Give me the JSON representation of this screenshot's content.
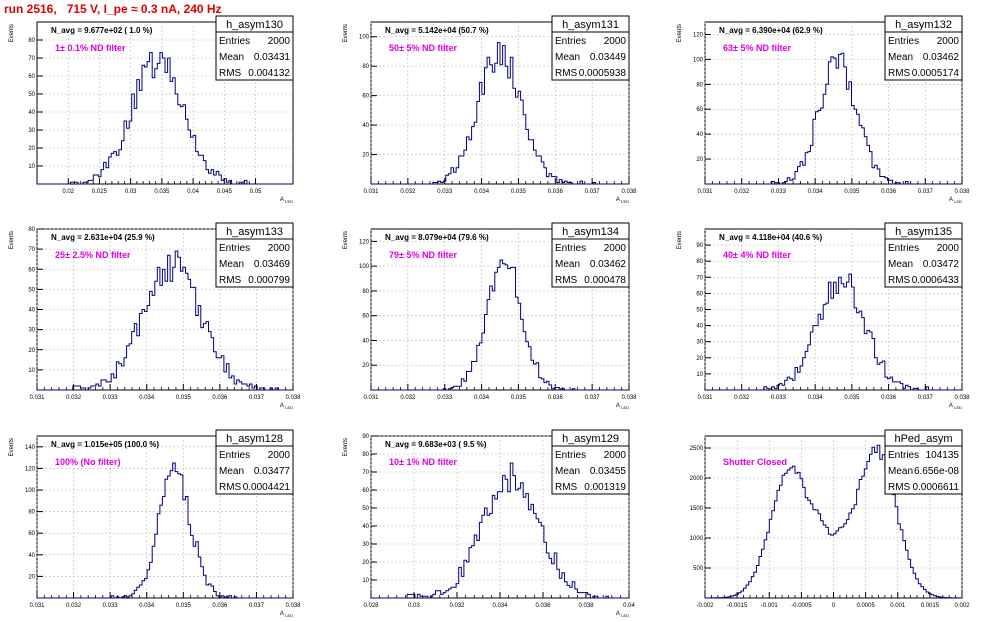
{
  "page_title": "run 2516,   715 V, I_pe ≈ 0.3 nA, 240 Hz",
  "colors": {
    "title": "#e00000",
    "annotation": "#e000e0",
    "histogram": "#00007f",
    "grid": "#bbbbbb",
    "axis": "#000000"
  },
  "chart_data": [
    {
      "type": "histogram",
      "name": "h_asym130",
      "stats": {
        "entries_label": "Entries",
        "entries": "2000",
        "mean_label": "Mean",
        "mean": "0.03431",
        "rms_label": "RMS",
        "rms": "0.004132"
      },
      "avg_label": "N_avg = 9.677e+02 ( 1.0 %)",
      "filter_label": "1± 0.1% ND filter",
      "xlabel": "A_{LED}",
      "ylabel": "Events",
      "xlim": [
        0.015,
        0.056
      ],
      "ylim": [
        0,
        90
      ],
      "xticks": [
        0.02,
        0.025,
        0.03,
        0.035,
        0.04,
        0.045,
        0.05
      ],
      "xtick_labels": [
        "0.02",
        "0.025",
        "0.03",
        "0.035",
        "0.04",
        "0.045",
        "0.05"
      ],
      "yticks": [
        10,
        20,
        30,
        40,
        50,
        60,
        70,
        80
      ],
      "ytick_labels": [
        "10",
        "20",
        "30",
        "40",
        "50",
        "60",
        "70",
        "80"
      ],
      "mean": 0.03431,
      "rms": 0.004132,
      "peak": 80
    },
    {
      "type": "histogram",
      "name": "h_asym131",
      "stats": {
        "entries_label": "Entries",
        "entries": "2000",
        "mean_label": "Mean",
        "mean": "0.03449",
        "rms_label": "RMS",
        "rms": "0.0005938"
      },
      "avg_label": "N_avg = 5.142e+04 (50.7 %)",
      "filter_label": "50± 5% ND filter",
      "xlabel": "A_{LED}",
      "ylabel": "Events",
      "xlim": [
        0.031,
        0.038
      ],
      "ylim": [
        0,
        110
      ],
      "xticks": [
        0.031,
        0.032,
        0.033,
        0.034,
        0.035,
        0.036,
        0.037,
        0.038
      ],
      "xtick_labels": [
        "0.031",
        "0.032",
        "0.033",
        "0.034",
        "0.035",
        "0.036",
        "0.037",
        "0.038"
      ],
      "yticks": [
        20,
        40,
        60,
        80,
        100
      ],
      "ytick_labels": [
        "20",
        "40",
        "60",
        "80",
        "100"
      ],
      "mean": 0.03449,
      "rms": 0.0005938,
      "peak": 105
    },
    {
      "type": "histogram",
      "name": "h_asym132",
      "stats": {
        "entries_label": "Entries",
        "entries": "2000",
        "mean_label": "Mean",
        "mean": "0.03462",
        "rms_label": "RMS",
        "rms": "0.0005174"
      },
      "avg_label": "N_avg = 6.390e+04 (62.9 %)",
      "filter_label": "63± 5% ND filter",
      "xlabel": "A_{LED}",
      "ylabel": "Events",
      "xlim": [
        0.031,
        0.038
      ],
      "ylim": [
        0,
        130
      ],
      "xticks": [
        0.031,
        0.032,
        0.033,
        0.034,
        0.035,
        0.036,
        0.037,
        0.038
      ],
      "xtick_labels": [
        "0.031",
        "0.032",
        "0.033",
        "0.034",
        "0.035",
        "0.036",
        "0.037",
        "0.038"
      ],
      "yticks": [
        20,
        40,
        60,
        80,
        100,
        120
      ],
      "ytick_labels": [
        "20",
        "40",
        "60",
        "80",
        "100",
        "120"
      ],
      "mean": 0.03462,
      "rms": 0.0005174,
      "peak": 115
    },
    {
      "type": "histogram",
      "name": "h_asym133",
      "stats": {
        "entries_label": "Entries",
        "entries": "2000",
        "mean_label": "Mean",
        "mean": "0.03469",
        "rms_label": "RMS",
        "rms": "0.000799"
      },
      "avg_label": "N_avg = 2.631e+04 (25.9 %)",
      "filter_label": "25± 2.5% ND filter",
      "xlabel": "A_{LED}",
      "ylabel": "Events",
      "xlim": [
        0.031,
        0.038
      ],
      "ylim": [
        0,
        80
      ],
      "xticks": [
        0.031,
        0.032,
        0.033,
        0.034,
        0.035,
        0.036,
        0.037,
        0.038
      ],
      "xtick_labels": [
        "0.031",
        "0.032",
        "0.033",
        "0.034",
        "0.035",
        "0.036",
        "0.037",
        "0.038"
      ],
      "yticks": [
        10,
        20,
        30,
        40,
        50,
        60,
        70,
        80
      ],
      "ytick_labels": [
        "10",
        "20",
        "30",
        "40",
        "50",
        "60",
        "70",
        "80"
      ],
      "mean": 0.03469,
      "rms": 0.000799,
      "peak": 72
    },
    {
      "type": "histogram",
      "name": "h_asym134",
      "stats": {
        "entries_label": "Entries",
        "entries": "2000",
        "mean_label": "Mean",
        "mean": "0.03462",
        "rms_label": "RMS",
        "rms": "0.000478"
      },
      "avg_label": "N_avg = 8.079e+04 (79.6 %)",
      "filter_label": "79± 5% ND filter",
      "xlabel": "A_{LED}",
      "ylabel": "Events",
      "xlim": [
        0.031,
        0.038
      ],
      "ylim": [
        0,
        130
      ],
      "xticks": [
        0.031,
        0.032,
        0.033,
        0.034,
        0.035,
        0.036,
        0.037,
        0.038
      ],
      "xtick_labels": [
        "0.031",
        "0.032",
        "0.033",
        "0.034",
        "0.035",
        "0.036",
        "0.037",
        "0.038"
      ],
      "yticks": [
        20,
        40,
        60,
        80,
        100,
        120
      ],
      "ytick_labels": [
        "20",
        "40",
        "60",
        "80",
        "100",
        "120"
      ],
      "mean": 0.03462,
      "rms": 0.000478,
      "peak": 122
    },
    {
      "type": "histogram",
      "name": "h_asym135",
      "stats": {
        "entries_label": "Entries",
        "entries": "2000",
        "mean_label": "Mean",
        "mean": "0.03472",
        "rms_label": "RMS",
        "rms": "0.0006433"
      },
      "avg_label": "N_avg = 4.118e+04 (40.6 %)",
      "filter_label": "40± 4% ND filter",
      "xlabel": "A_{LED}",
      "ylabel": "Events",
      "xlim": [
        0.031,
        0.038
      ],
      "ylim": [
        0,
        100
      ],
      "xticks": [
        0.031,
        0.032,
        0.033,
        0.034,
        0.035,
        0.036,
        0.037,
        0.038
      ],
      "xtick_labels": [
        "0.031",
        "0.032",
        "0.033",
        "0.034",
        "0.035",
        "0.036",
        "0.037",
        "0.038"
      ],
      "yticks": [
        10,
        20,
        30,
        40,
        50,
        60,
        70,
        80,
        90
      ],
      "ytick_labels": [
        "10",
        "20",
        "30",
        "40",
        "50",
        "60",
        "70",
        "80",
        "90"
      ],
      "mean": 0.03472,
      "rms": 0.0006433,
      "peak": 80
    },
    {
      "type": "histogram",
      "name": "h_asym128",
      "stats": {
        "entries_label": "Entries",
        "entries": "2000",
        "mean_label": "Mean",
        "mean": "0.03477",
        "rms_label": "RMS",
        "rms": "0.0004421"
      },
      "avg_label": "N_avg = 1.015e+05 (100.0 %)",
      "filter_label": "100% (No filter)",
      "xlabel": "A_{LED}",
      "ylabel": "Events",
      "xlim": [
        0.031,
        0.038
      ],
      "ylim": [
        0,
        150
      ],
      "xticks": [
        0.031,
        0.032,
        0.033,
        0.034,
        0.035,
        0.036,
        0.037,
        0.038
      ],
      "xtick_labels": [
        "0.031",
        "0.032",
        "0.033",
        "0.034",
        "0.035",
        "0.036",
        "0.037",
        "0.038"
      ],
      "yticks": [
        20,
        40,
        60,
        80,
        100,
        120,
        140
      ],
      "ytick_labels": [
        "20",
        "40",
        "60",
        "80",
        "100",
        "120",
        "140"
      ],
      "mean": 0.03477,
      "rms": 0.0004421,
      "peak": 135
    },
    {
      "type": "histogram",
      "name": "h_asym129",
      "stats": {
        "entries_label": "Entries",
        "entries": "2000",
        "mean_label": "Mean",
        "mean": "0.03455",
        "rms_label": "RMS",
        "rms": "0.001319"
      },
      "avg_label": "N_avg = 9.683e+03 ( 9.5 %)",
      "filter_label": "10± 1% ND filter",
      "xlabel": "A_{LED}",
      "ylabel": "Events",
      "xlim": [
        0.028,
        0.04
      ],
      "ylim": [
        0,
        90
      ],
      "xticks": [
        0.028,
        0.03,
        0.032,
        0.034,
        0.036,
        0.038,
        0.04
      ],
      "xtick_labels": [
        "0.028",
        "0.03",
        "0.032",
        "0.034",
        "0.036",
        "0.038",
        "0.04"
      ],
      "yticks": [
        10,
        20,
        30,
        40,
        50,
        60,
        70,
        80,
        90
      ],
      "ytick_labels": [
        "10",
        "20",
        "30",
        "40",
        "50",
        "60",
        "70",
        "80",
        "90"
      ],
      "mean": 0.03455,
      "rms": 0.001319,
      "peak": 80
    },
    {
      "type": "histogram",
      "name": "hPed_asym",
      "stats": {
        "entries_label": "Entries",
        "entries": "104135",
        "mean_label": "Mean",
        "mean": "6.656e-08",
        "rms_label": "RMS",
        "rms": "0.0006611"
      },
      "avg_label": "",
      "filter_label": "Shutter Closed",
      "xlabel": "",
      "ylabel": "",
      "xlim": [
        -0.002,
        0.002
      ],
      "ylim": [
        0,
        2700
      ],
      "xticks": [
        -0.002,
        -0.0015,
        -0.001,
        -0.0005,
        0,
        0.0005,
        0.001,
        0.0015,
        0.002
      ],
      "xtick_labels": [
        "-0.002",
        "-0.0015",
        "-0.001",
        "-0.0005",
        "0",
        "0.0005",
        "0.001",
        "0.0015",
        "0.002"
      ],
      "yticks": [
        500,
        1000,
        1500,
        2000,
        2500
      ],
      "ytick_labels": [
        "500",
        "1000",
        "1500",
        "2000",
        "2500"
      ],
      "bimodal": {
        "centers": [
          -0.00065,
          0.00065
        ],
        "sigma": 0.00032,
        "peaks": [
          2150,
          2500
        ],
        "dip": 1000
      }
    }
  ]
}
